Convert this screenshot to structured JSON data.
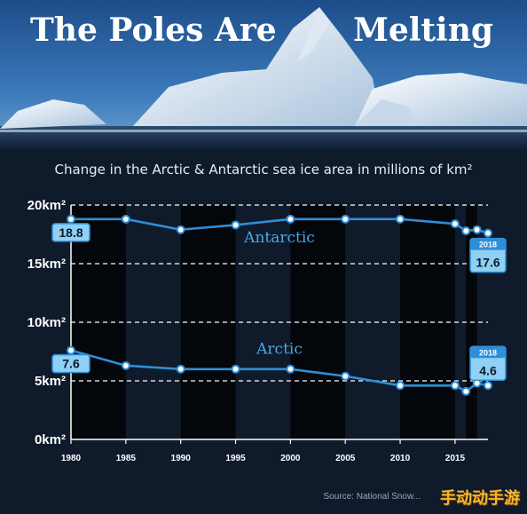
{
  "header": {
    "title_left": "The Poles Are",
    "title_right": "Melting",
    "subtitle": "Change in the Arctic & Antarctic sea ice area in millions of km²"
  },
  "source_text": "Source: National Snow...",
  "watermark_text": "手动动手游",
  "colors": {
    "line": "#2e8ed6",
    "point_fill": "#ffffff",
    "callout_fill": "#8fd0f5",
    "background": "#0f1a2b",
    "band": "#000000"
  },
  "chart_data": {
    "type": "line",
    "title": "Change in the Arctic & Antarctic sea ice area in millions of km²",
    "xlabel": "",
    "ylabel": "",
    "xlim": [
      1980,
      2018
    ],
    "ylim": [
      0,
      20
    ],
    "x_ticks": [
      "1980",
      "1985",
      "1990",
      "1995",
      "2000",
      "2005",
      "2010",
      "2015"
    ],
    "y_ticks": [
      {
        "value": 0,
        "label": "0km²"
      },
      {
        "value": 5,
        "label": "5km²"
      },
      {
        "value": 10,
        "label": "10km²"
      },
      {
        "value": 15,
        "label": "15km²"
      },
      {
        "value": 20,
        "label": "20km²"
      }
    ],
    "grid": "dashed horizontal at 5, 10, 15, 20",
    "dark_bands": [
      [
        1980,
        1985
      ],
      [
        1990,
        1995
      ],
      [
        2000,
        2005
      ],
      [
        2010,
        2015
      ],
      [
        2016,
        2017
      ]
    ],
    "series": [
      {
        "name": "Antarctic",
        "x": [
          1980,
          1985,
          1990,
          1995,
          2000,
          2005,
          2010,
          2015,
          2016,
          2017,
          2018
        ],
        "values": [
          18.8,
          18.8,
          17.9,
          18.3,
          18.8,
          18.8,
          18.8,
          18.4,
          17.8,
          17.9,
          17.6
        ],
        "callout_start": "18.8",
        "callout_end_year": "2018",
        "callout_end": "17.6"
      },
      {
        "name": "Arctic",
        "x": [
          1980,
          1985,
          1990,
          1995,
          2000,
          2005,
          2010,
          2015,
          2016,
          2017,
          2018
        ],
        "values": [
          7.6,
          6.3,
          6.0,
          6.0,
          6.0,
          5.4,
          4.6,
          4.6,
          4.1,
          4.8,
          4.6
        ],
        "callout_start": "7.6",
        "callout_end_year": "2018",
        "callout_end": "4.6"
      }
    ]
  }
}
